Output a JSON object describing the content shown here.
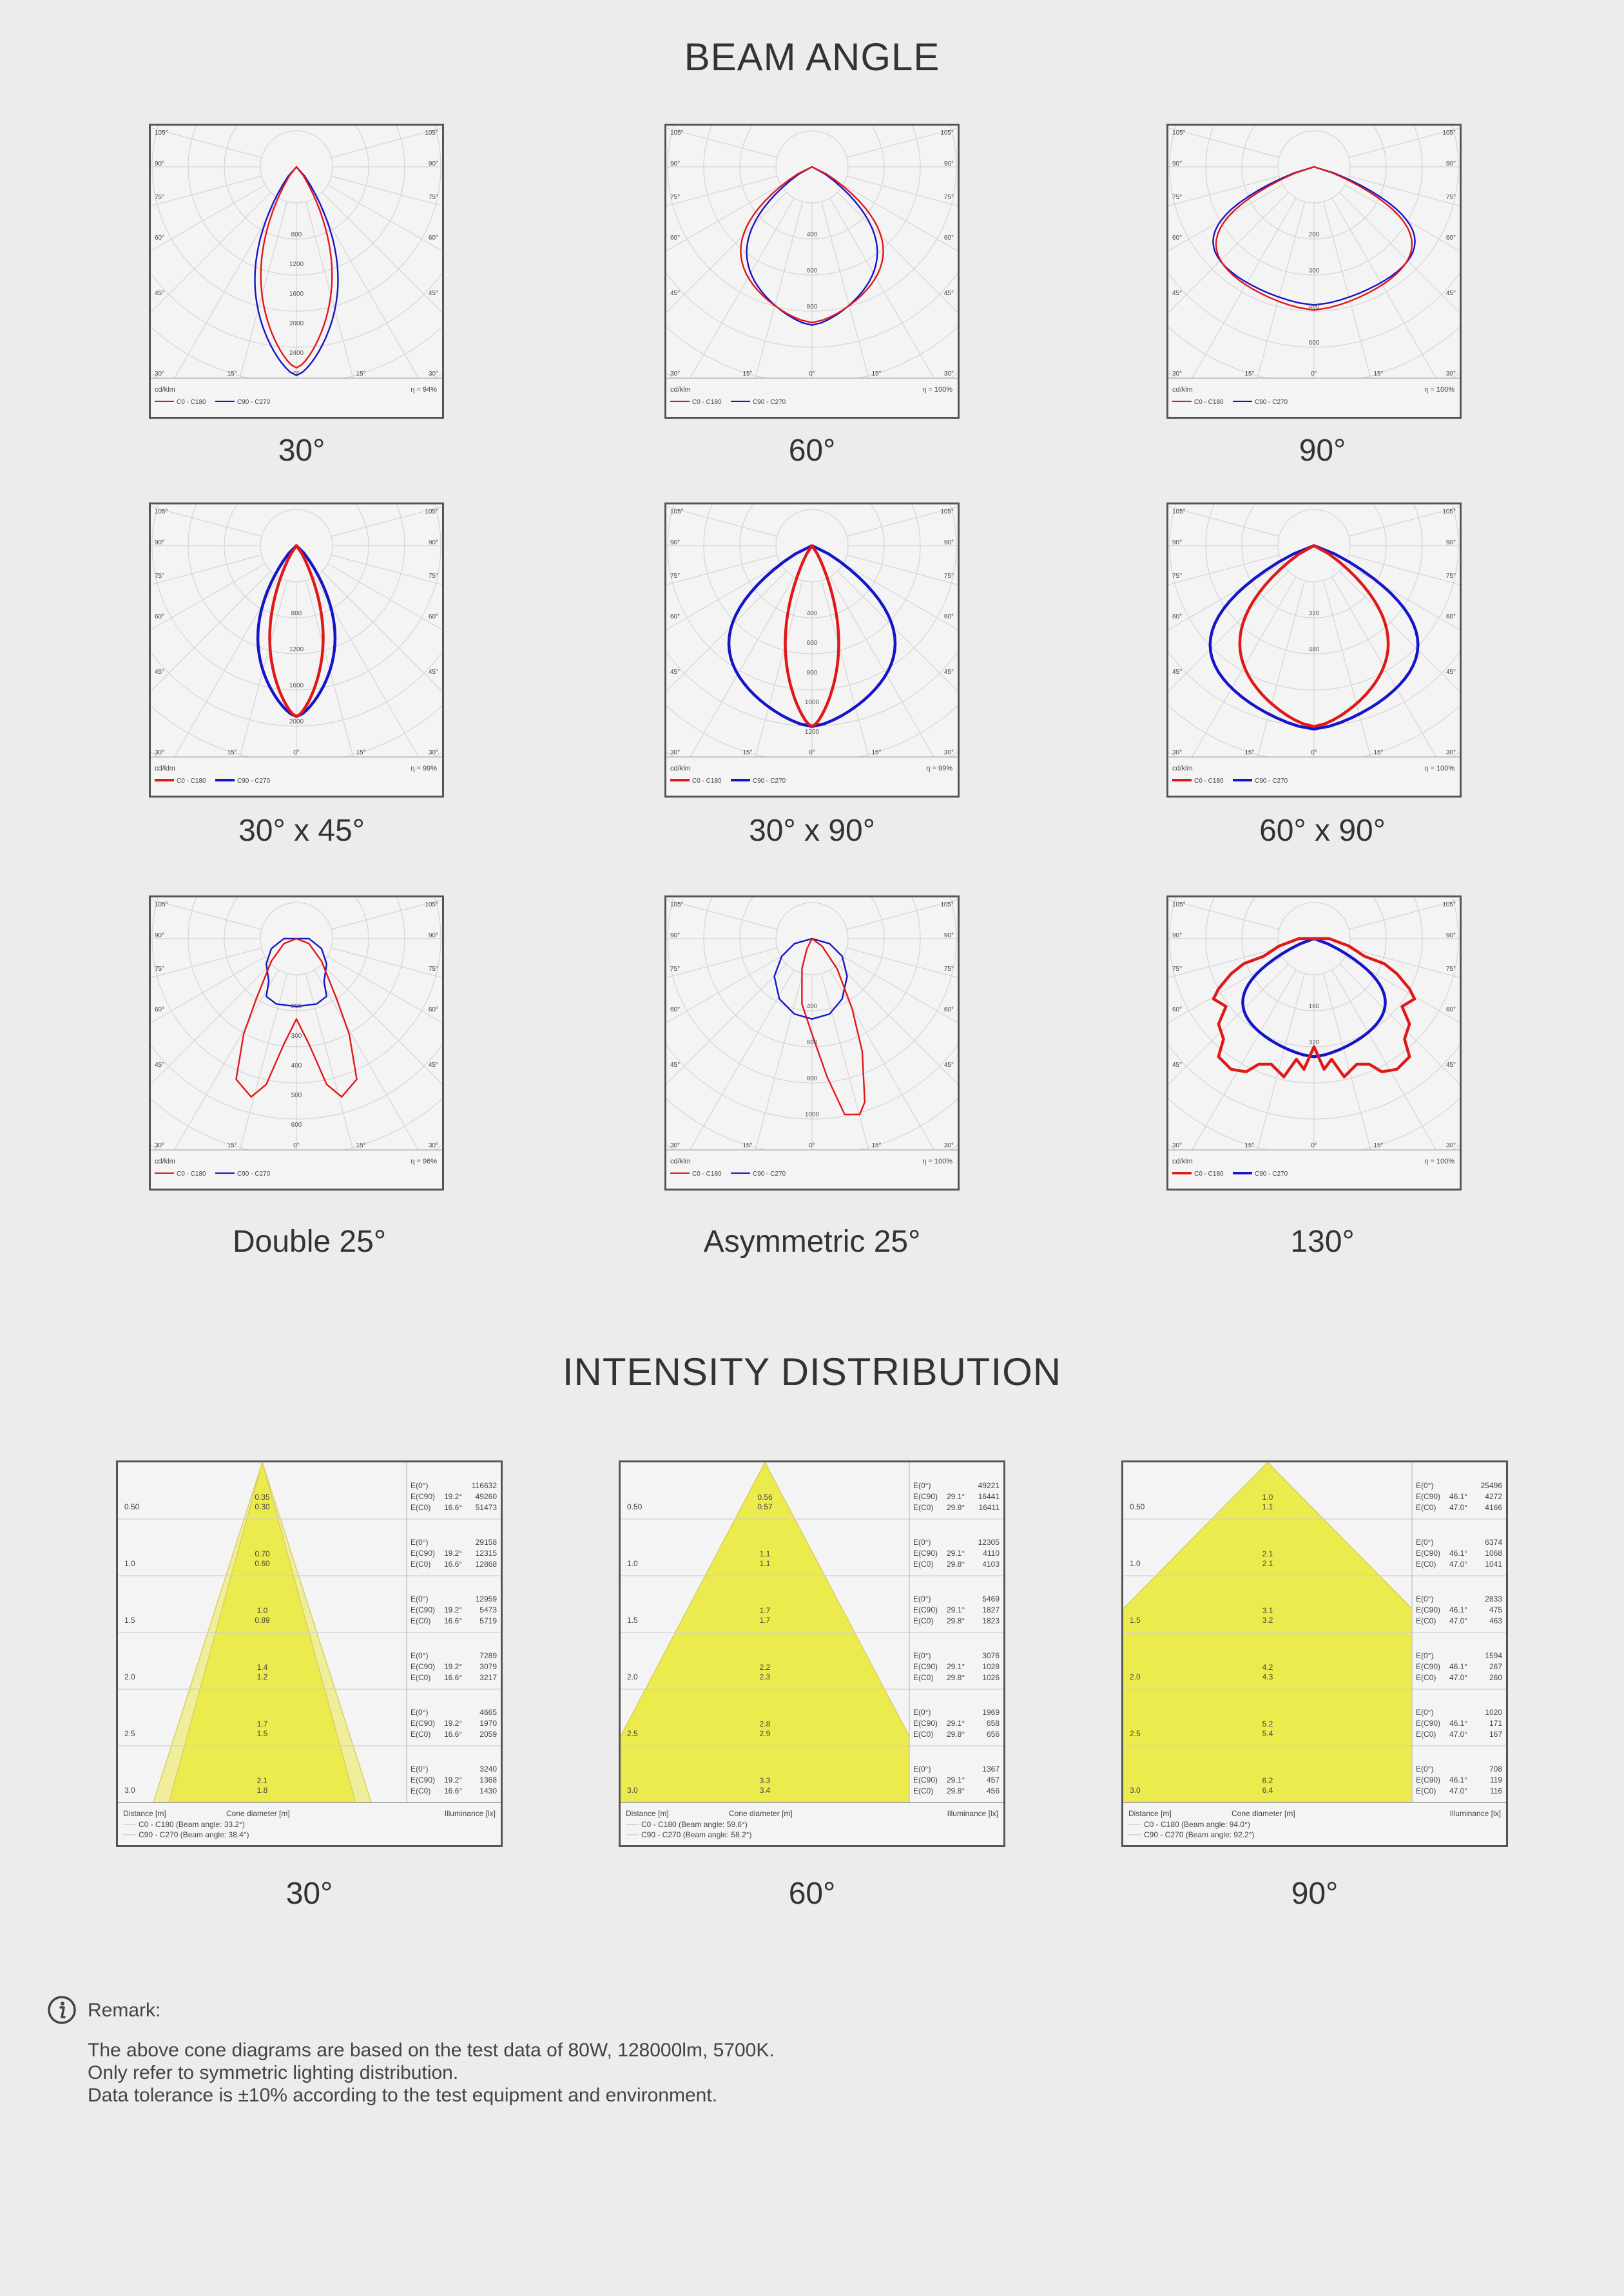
{
  "sections": {
    "beam_angle_title": "BEAM ANGLE",
    "intensity_title": "INTENSITY DISTRIBUTION"
  },
  "polar_common": {
    "unit": "cd/klm",
    "legend_c0": "C0 - C180",
    "legend_c90": "C90 - C270",
    "angle_labels": [
      "105°",
      "90°",
      "75°",
      "60°",
      "45°",
      "30°",
      "15°",
      "0°"
    ],
    "colors": {
      "c0": "#e01818",
      "c90": "#1515c8"
    }
  },
  "polar_charts": [
    {
      "caption": "30°",
      "eta": "η = 94%",
      "radial_labels": [
        "800",
        "1200",
        "1600",
        "2000",
        "2400"
      ],
      "c0_shape": [
        0,
        0.8,
        0.12
      ],
      "c90_shape": [
        0,
        0.83,
        0.14
      ],
      "bold": false
    },
    {
      "caption": "60°",
      "eta": "η = 100%",
      "radial_labels": [
        "400",
        "600",
        "800"
      ],
      "c0_shape": [
        0,
        0.62,
        0.24
      ],
      "c90_shape": [
        0,
        0.63,
        0.22
      ],
      "bold": false
    },
    {
      "caption": "90°",
      "eta": "η = 100%",
      "radial_labels": [
        "200",
        "300",
        "400",
        "600"
      ],
      "c0_shape": [
        0,
        0.57,
        0.33
      ],
      "c90_shape": [
        0,
        0.55,
        0.34
      ],
      "bold": false
    },
    {
      "caption": "30° x 45°",
      "eta": "η = 99%",
      "radial_labels": [
        "800",
        "1200",
        "1600",
        "2000"
      ],
      "c0_shape": [
        0,
        0.68,
        0.09
      ],
      "c90_shape": [
        0,
        0.68,
        0.13
      ],
      "bold": true
    },
    {
      "caption": "30° x 90°",
      "eta": "η = 99%",
      "radial_labels": [
        "400",
        "600",
        "800",
        "1000",
        "1200"
      ],
      "c0_shape": [
        0,
        0.72,
        0.09
      ],
      "c90_shape": [
        0,
        0.72,
        0.28
      ],
      "bold": true
    },
    {
      "caption": "60° x 90°",
      "eta": "η = 100%",
      "radial_labels": [
        "320",
        "480"
      ],
      "c0_shape": [
        0,
        0.72,
        0.25
      ],
      "c90_shape": [
        0,
        0.73,
        0.35
      ],
      "bold": true
    },
    {
      "caption": "Double 25°",
      "eta": "η = 96%",
      "radial_labels": [
        "200",
        "300",
        "400",
        "500",
        "600"
      ],
      "c0_shape": "double",
      "c90_shape": "small",
      "bold": false
    },
    {
      "caption": "Asymmetric 25°",
      "eta": "η = 100%",
      "radial_labels": [
        "400",
        "600",
        "800",
        "1000"
      ],
      "c0_shape": "asym",
      "c90_shape": "asymsmall",
      "bold": false
    },
    {
      "caption": "130°",
      "eta": "η = 100%",
      "radial_labels": [
        "160",
        "320"
      ],
      "c0_shape": "wide",
      "c90_shape": [
        0,
        0.47,
        0.24
      ],
      "bold": true
    }
  ],
  "cone_common": {
    "distance_label": "Distance [m]",
    "diameter_label": "Cone diameter [m]",
    "illuminance_label": "Illuminance [lx]",
    "e_labels": [
      "E(0°)",
      "E(C90)",
      "E(C0)"
    ]
  },
  "cone_charts": [
    {
      "caption": "30°",
      "legend_c0": "C0 - C180 (Beam angle: 33.2°)",
      "legend_c90": "C90 - C270 (Beam angle: 38.4°)",
      "angle_c90": "19.2°",
      "angle_c0": "16.6°",
      "beam_c0": 33.2,
      "beam_c90": 38.4,
      "rows": [
        {
          "distance": "0.50",
          "d1": "0.35",
          "d2": "0.30",
          "e0": "116632",
          "e90": "49260",
          "ec0": "51473"
        },
        {
          "distance": "1.0",
          "d1": "0.70",
          "d2": "0.60",
          "e0": "29158",
          "e90": "12315",
          "ec0": "12868"
        },
        {
          "distance": "1.5",
          "d1": "1.0",
          "d2": "0.89",
          "e0": "12959",
          "e90": "5473",
          "ec0": "5719"
        },
        {
          "distance": "2.0",
          "d1": "1.4",
          "d2": "1.2",
          "e0": "7289",
          "e90": "3079",
          "ec0": "3217"
        },
        {
          "distance": "2.5",
          "d1": "1.7",
          "d2": "1.5",
          "e0": "4665",
          "e90": "1970",
          "ec0": "2059"
        },
        {
          "distance": "3.0",
          "d1": "2.1",
          "d2": "1.8",
          "e0": "3240",
          "e90": "1368",
          "ec0": "1430"
        }
      ]
    },
    {
      "caption": "60°",
      "legend_c0": "C0 - C180 (Beam angle: 59.6°)",
      "legend_c90": "C90 - C270 (Beam angle: 58.2°)",
      "angle_c90": "29.1°",
      "angle_c0": "29.8°",
      "beam_c0": 59.6,
      "beam_c90": 58.2,
      "rows": [
        {
          "distance": "0.50",
          "d1": "0.56",
          "d2": "0.57",
          "e0": "49221",
          "e90": "16441",
          "ec0": "16411"
        },
        {
          "distance": "1.0",
          "d1": "1.1",
          "d2": "1.1",
          "e0": "12305",
          "e90": "4110",
          "ec0": "4103"
        },
        {
          "distance": "1.5",
          "d1": "1.7",
          "d2": "1.7",
          "e0": "5469",
          "e90": "1827",
          "ec0": "1823"
        },
        {
          "distance": "2.0",
          "d1": "2.2",
          "d2": "2.3",
          "e0": "3076",
          "e90": "1028",
          "ec0": "1026"
        },
        {
          "distance": "2.5",
          "d1": "2.8",
          "d2": "2.9",
          "e0": "1969",
          "e90": "658",
          "ec0": "656"
        },
        {
          "distance": "3.0",
          "d1": "3.3",
          "d2": "3.4",
          "e0": "1367",
          "e90": "457",
          "ec0": "456"
        }
      ]
    },
    {
      "caption": "90°",
      "legend_c0": "C0 - C180 (Beam angle: 94.0°)",
      "legend_c90": "C90 - C270 (Beam angle: 92.2°)",
      "angle_c90": "46.1°",
      "angle_c0": "47.0°",
      "beam_c0": 94.0,
      "beam_c90": 92.2,
      "rows": [
        {
          "distance": "0.50",
          "d1": "1.0",
          "d2": "1.1",
          "e0": "25496",
          "e90": "4272",
          "ec0": "4166"
        },
        {
          "distance": "1.0",
          "d1": "2.1",
          "d2": "2.1",
          "e0": "6374",
          "e90": "1068",
          "ec0": "1041"
        },
        {
          "distance": "1.5",
          "d1": "3.1",
          "d2": "3.2",
          "e0": "2833",
          "e90": "475",
          "ec0": "463"
        },
        {
          "distance": "2.0",
          "d1": "4.2",
          "d2": "4.3",
          "e0": "1594",
          "e90": "267",
          "ec0": "260"
        },
        {
          "distance": "2.5",
          "d1": "5.2",
          "d2": "5.4",
          "e0": "1020",
          "e90": "171",
          "ec0": "167"
        },
        {
          "distance": "3.0",
          "d1": "6.2",
          "d2": "6.4",
          "e0": "708",
          "e90": "119",
          "ec0": "116"
        }
      ]
    }
  ],
  "remark": {
    "title": "Remark:",
    "icon": "info-icon",
    "lines": [
      "The above cone diagrams are based on the test data of 80W, 128000lm, 5700K.",
      "Only refer to symmetric lighting distribution.",
      "Data tolerance is ±10% according to the test equipment and environment."
    ]
  }
}
